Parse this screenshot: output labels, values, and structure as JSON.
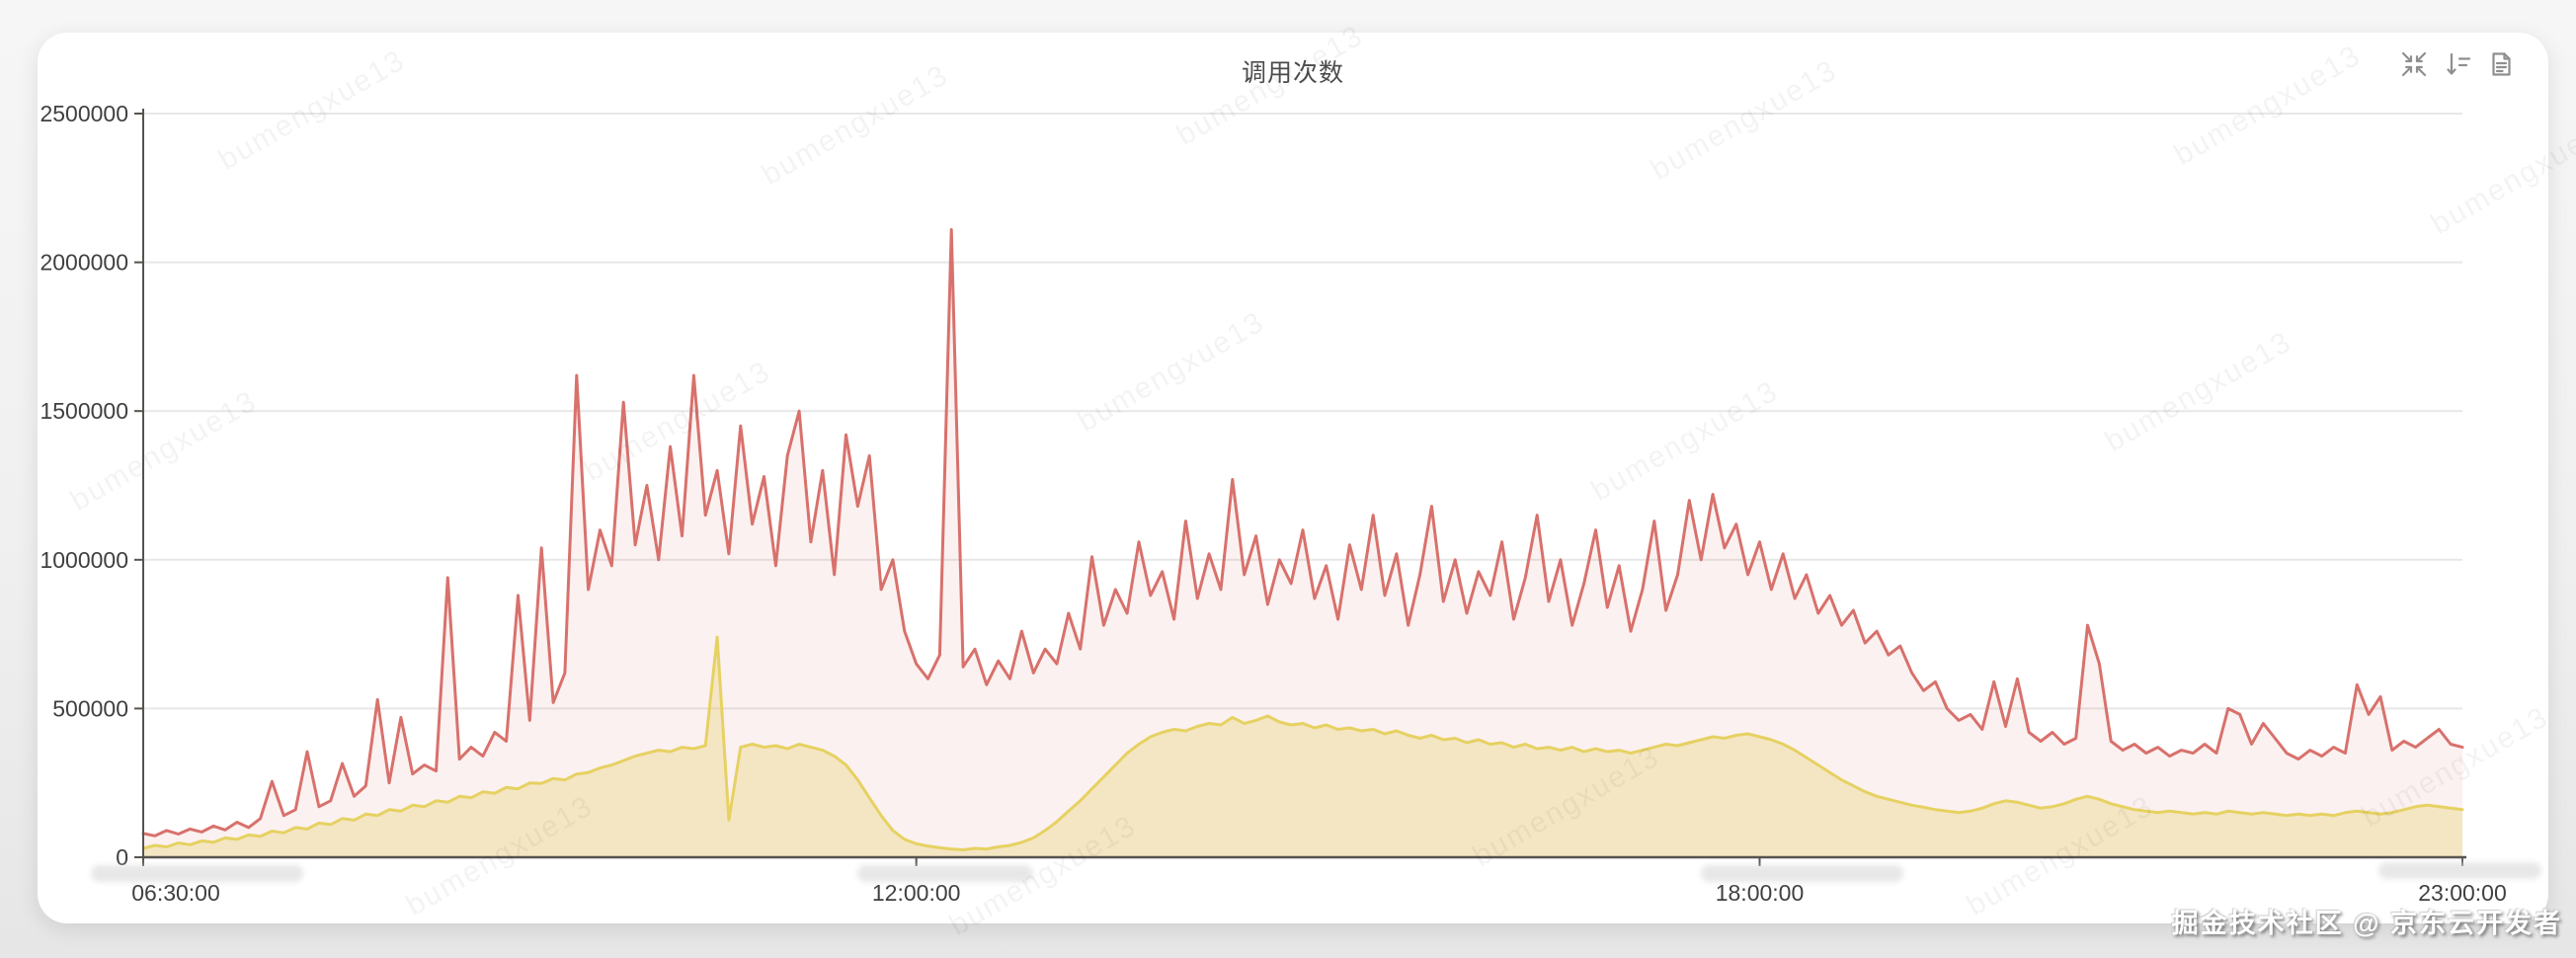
{
  "page": {
    "background": "#f0f0f0"
  },
  "card": {
    "title": "调用次数",
    "toolbar": {
      "icons": [
        {
          "name": "collapse-icon"
        },
        {
          "name": "sort-descending-icon"
        },
        {
          "name": "document-icon"
        }
      ]
    }
  },
  "watermark": {
    "diagonal_text": "bumengxue13",
    "badge_text": "掘金技术社区 @ 京东云开发者"
  },
  "chart_data": {
    "type": "line",
    "title": "调用次数",
    "xlabel": "",
    "ylabel": "",
    "x_start": "06:30:00",
    "x_end": "23:00:00",
    "x_total_minutes": 990,
    "sample_interval_minutes": 5,
    "ylim": [
      0,
      2500000
    ],
    "grid": true,
    "legend_position": "none",
    "colors": {
      "grid_line": "#e7e7e7",
      "axis_line": "#57534f",
      "tick_label": "#404040",
      "series_red": "#d8716c",
      "series_red_fill": "rgba(216,113,108,0.10)",
      "series_yellow": "#e6d162",
      "series_yellow_fill": "rgba(230,209,98,0.32)"
    },
    "yticks": [
      {
        "value": 0,
        "label": "0"
      },
      {
        "value": 500000,
        "label": "500000"
      },
      {
        "value": 1000000,
        "label": "1000000"
      },
      {
        "value": 1500000,
        "label": "1500000"
      },
      {
        "value": 2000000,
        "label": "2000000"
      },
      {
        "value": 2500000,
        "label": "2500000"
      }
    ],
    "xticks": [
      {
        "minutes": 0,
        "label": "06:30:00",
        "dx": 33
      },
      {
        "minutes": 330,
        "label": "12:00:00",
        "dx": 0
      },
      {
        "minutes": 690,
        "label": "18:00:00",
        "dx": 0
      },
      {
        "minutes": 990,
        "label": "23:00:00",
        "dx": 0
      }
    ],
    "series": [
      {
        "name": "series_1_red",
        "color": "#d8716c",
        "fill": "rgba(216,113,108,0.10)",
        "values": [
          80000,
          72000,
          90000,
          78000,
          95000,
          85000,
          105000,
          92000,
          118000,
          100000,
          130000,
          255000,
          140000,
          160000,
          355000,
          170000,
          190000,
          315000,
          205000,
          240000,
          530000,
          250000,
          470000,
          280000,
          310000,
          290000,
          940000,
          330000,
          370000,
          340000,
          420000,
          390000,
          880000,
          460000,
          1040000,
          520000,
          620000,
          1620000,
          900000,
          1100000,
          980000,
          1530000,
          1050000,
          1250000,
          1000000,
          1380000,
          1080000,
          1620000,
          1150000,
          1300000,
          1020000,
          1450000,
          1120000,
          1280000,
          980000,
          1350000,
          1500000,
          1060000,
          1300000,
          950000,
          1420000,
          1180000,
          1350000,
          900000,
          1000000,
          760000,
          650000,
          600000,
          680000,
          2110000,
          640000,
          700000,
          580000,
          660000,
          600000,
          760000,
          620000,
          700000,
          650000,
          820000,
          700000,
          1010000,
          780000,
          900000,
          820000,
          1060000,
          880000,
          960000,
          800000,
          1130000,
          870000,
          1020000,
          900000,
          1270000,
          950000,
          1080000,
          850000,
          1000000,
          920000,
          1100000,
          870000,
          980000,
          800000,
          1050000,
          900000,
          1150000,
          880000,
          1020000,
          780000,
          950000,
          1180000,
          860000,
          1000000,
          820000,
          960000,
          880000,
          1060000,
          800000,
          940000,
          1150000,
          860000,
          1000000,
          780000,
          920000,
          1100000,
          840000,
          980000,
          760000,
          900000,
          1130000,
          830000,
          950000,
          1200000,
          1000000,
          1220000,
          1040000,
          1120000,
          950000,
          1060000,
          900000,
          1020000,
          870000,
          950000,
          820000,
          880000,
          780000,
          830000,
          720000,
          760000,
          680000,
          710000,
          620000,
          560000,
          590000,
          500000,
          460000,
          480000,
          430000,
          590000,
          440000,
          600000,
          420000,
          390000,
          420000,
          380000,
          400000,
          780000,
          650000,
          390000,
          360000,
          380000,
          350000,
          370000,
          340000,
          360000,
          350000,
          380000,
          350000,
          500000,
          480000,
          380000,
          450000,
          400000,
          350000,
          330000,
          360000,
          340000,
          370000,
          350000,
          580000,
          480000,
          540000,
          360000,
          390000,
          370000,
          400000,
          430000,
          380000,
          370000
        ]
      },
      {
        "name": "series_2_yellow",
        "color": "#e6d162",
        "fill": "rgba(230,209,98,0.32)",
        "values": [
          30000,
          40000,
          35000,
          48000,
          42000,
          55000,
          50000,
          65000,
          60000,
          75000,
          70000,
          88000,
          82000,
          100000,
          95000,
          115000,
          110000,
          130000,
          125000,
          145000,
          140000,
          160000,
          155000,
          175000,
          170000,
          190000,
          185000,
          205000,
          200000,
          220000,
          215000,
          235000,
          230000,
          250000,
          248000,
          265000,
          260000,
          280000,
          285000,
          300000,
          310000,
          325000,
          340000,
          350000,
          360000,
          355000,
          370000,
          365000,
          375000,
          740000,
          125000,
          370000,
          380000,
          370000,
          375000,
          365000,
          380000,
          370000,
          360000,
          340000,
          310000,
          260000,
          200000,
          140000,
          90000,
          60000,
          45000,
          38000,
          32000,
          28000,
          25000,
          30000,
          28000,
          35000,
          40000,
          50000,
          65000,
          90000,
          120000,
          155000,
          190000,
          230000,
          270000,
          310000,
          350000,
          380000,
          405000,
          420000,
          430000,
          425000,
          440000,
          450000,
          445000,
          470000,
          450000,
          460000,
          475000,
          455000,
          445000,
          450000,
          435000,
          445000,
          430000,
          435000,
          425000,
          430000,
          415000,
          425000,
          410000,
          400000,
          410000,
          395000,
          400000,
          385000,
          395000,
          380000,
          385000,
          370000,
          380000,
          365000,
          370000,
          360000,
          370000,
          355000,
          365000,
          355000,
          360000,
          350000,
          360000,
          370000,
          380000,
          375000,
          385000,
          395000,
          405000,
          400000,
          410000,
          415000,
          405000,
          395000,
          380000,
          360000,
          335000,
          310000,
          285000,
          260000,
          240000,
          220000,
          205000,
          195000,
          185000,
          175000,
          168000,
          160000,
          155000,
          150000,
          155000,
          165000,
          180000,
          190000,
          185000,
          175000,
          165000,
          170000,
          180000,
          195000,
          205000,
          195000,
          180000,
          170000,
          160000,
          155000,
          150000,
          155000,
          150000,
          145000,
          150000,
          145000,
          155000,
          150000,
          145000,
          150000,
          145000,
          140000,
          145000,
          140000,
          145000,
          140000,
          150000,
          155000,
          150000,
          145000,
          150000,
          160000,
          170000,
          175000,
          170000,
          165000,
          160000
        ]
      }
    ]
  }
}
